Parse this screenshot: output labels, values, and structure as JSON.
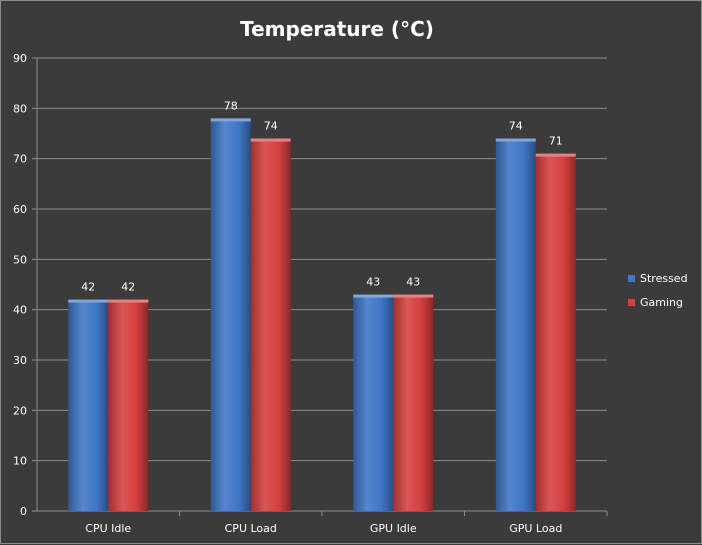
{
  "chart_data": {
    "type": "bar",
    "title": "Temperature (°C)",
    "categories": [
      "CPU Idle",
      "CPU Load",
      "GPU Idle",
      "GPU Load"
    ],
    "series": [
      {
        "name": "Stressed",
        "values": [
          42,
          78,
          43,
          74
        ],
        "color": "#3f76c6"
      },
      {
        "name": "Gaming",
        "values": [
          42,
          74,
          43,
          71
        ],
        "color": "#d63f3f"
      }
    ],
    "ylim": [
      0,
      90
    ],
    "yticks": [
      0,
      10,
      20,
      30,
      40,
      50,
      60,
      70,
      80,
      90
    ],
    "grid": true,
    "legend_position": "right",
    "data_labels": true,
    "colors": {
      "background": "#3b3b3b",
      "grid": "#8c8c8c",
      "text": "#ffffff"
    }
  }
}
